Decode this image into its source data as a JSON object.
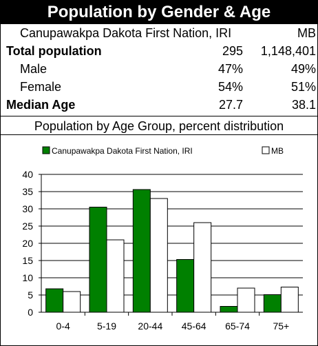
{
  "header": {
    "title": "Population by Gender & Age",
    "region_label": "Canupawakpa Dakota First Nation, IRI",
    "comparison_label": "MB"
  },
  "stats": [
    {
      "label": "Total population",
      "v1": "295",
      "v2": "1,148,401",
      "bold": true
    },
    {
      "label": "Male",
      "v1": "47%",
      "v2": "49%",
      "bold": false
    },
    {
      "label": "Female",
      "v1": "54%",
      "v2": "51%",
      "bold": false
    },
    {
      "label": "Median Age",
      "v1": "27.7",
      "v2": "38.1",
      "bold": true
    }
  ],
  "colors": {
    "series1": "#008000",
    "series2": "#ffffff",
    "header_bg": "#000000"
  },
  "chart_data": {
    "type": "bar",
    "title": "Population by Age Group, percent distribution",
    "categories": [
      "0-4",
      "5-19",
      "20-44",
      "45-64",
      "65-74",
      "75+"
    ],
    "series": [
      {
        "name": "Canupawakpa Dakota First Nation, IRI",
        "values": [
          6.8,
          30.5,
          35.6,
          15.3,
          1.7,
          5.1
        ],
        "color": "#008000"
      },
      {
        "name": "MB",
        "values": [
          6.0,
          21.0,
          33.0,
          26.0,
          7.0,
          7.3
        ],
        "color": "#ffffff"
      }
    ],
    "ylim": [
      0,
      40
    ],
    "yticks": [
      0,
      5,
      10,
      15,
      20,
      25,
      30,
      35,
      40
    ],
    "grid": true,
    "legend": "top"
  }
}
